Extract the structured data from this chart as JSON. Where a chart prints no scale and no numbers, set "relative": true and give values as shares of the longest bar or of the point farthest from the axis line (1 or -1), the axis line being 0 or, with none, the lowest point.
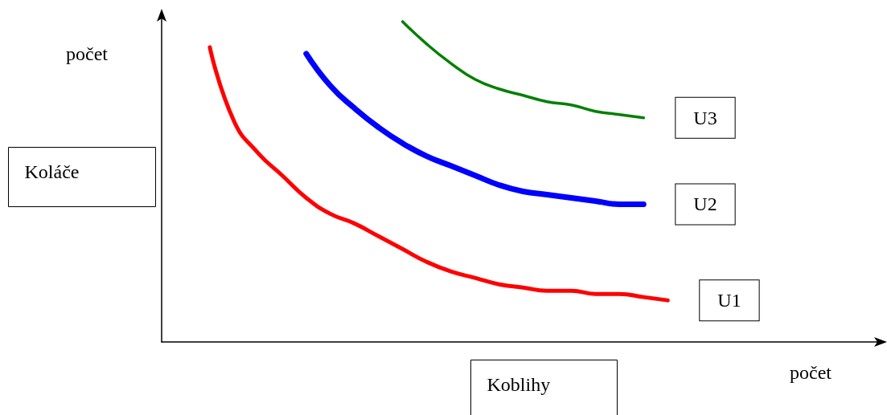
{
  "chart_data": {
    "type": "line",
    "relative": true,
    "xlabel": "Koblihy",
    "ylabel": "Koláče",
    "annotations": [
      "počet",
      "počet"
    ],
    "categories": [
      null,
      null,
      null,
      null,
      null,
      null,
      null,
      null,
      null,
      null,
      null,
      null,
      null,
      null,
      null,
      null,
      null,
      null,
      null,
      null,
      null,
      null,
      null,
      null,
      null,
      null,
      null,
      null,
      null,
      null,
      null
    ],
    "series": [
      {
        "name": "U1",
        "color": "#ff0000",
        "values": [
          null,
          null,
          0.92,
          0.69,
          0.59,
          0.52,
          0.45,
          0.4,
          0.37,
          0.33,
          0.29,
          0.25,
          0.22,
          0.2,
          0.18,
          0.17,
          0.16,
          0.16,
          0.15,
          0.15,
          0.14,
          0.13,
          null,
          null,
          null,
          null,
          null,
          null,
          null,
          null,
          null
        ]
      },
      {
        "name": "U2",
        "color": "#0000ff",
        "values": [
          null,
          null,
          null,
          null,
          null,
          null,
          0.9,
          0.8,
          0.73,
          0.67,
          0.62,
          0.58,
          0.55,
          0.52,
          0.49,
          0.47,
          0.46,
          0.45,
          0.44,
          0.43,
          0.43,
          null,
          null,
          null,
          null,
          null,
          null,
          null,
          null,
          null,
          null
        ]
      },
      {
        "name": "U3",
        "color": "#008000",
        "values": [
          null,
          null,
          null,
          null,
          null,
          null,
          null,
          null,
          null,
          null,
          1.0,
          0.93,
          0.87,
          0.82,
          0.79,
          0.77,
          0.75,
          0.74,
          0.72,
          0.71,
          0.7,
          null,
          null,
          null,
          null,
          null,
          null,
          null,
          null,
          null,
          null
        ]
      }
    ],
    "legend": false,
    "grid": false,
    "marker": "none"
  }
}
